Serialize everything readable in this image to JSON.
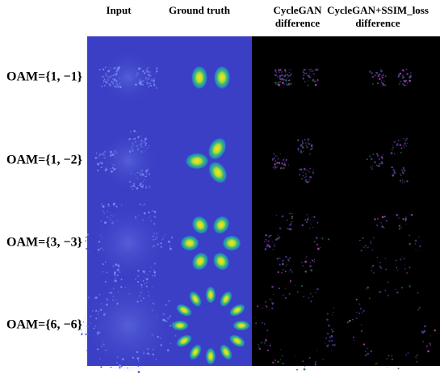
{
  "headers": [
    [
      "Input"
    ],
    [
      "Ground truth"
    ],
    [
      "CycleGAN",
      "difference"
    ],
    [
      "CycleGAN+SSIM_loss",
      "difference"
    ]
  ],
  "rows": [
    "OAM={1, −1}",
    "OAM={1, −2}",
    "OAM={3, −3}",
    "OAM={6, −6}"
  ]
}
